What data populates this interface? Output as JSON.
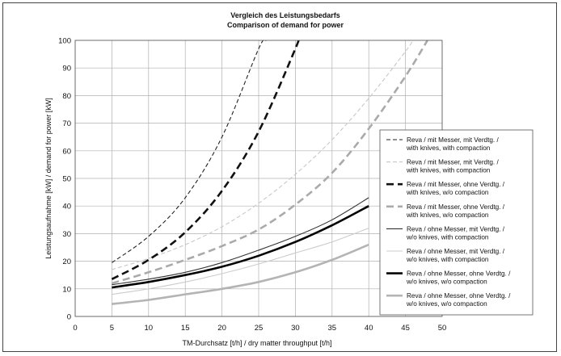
{
  "chart_data": {
    "type": "line",
    "title": "Vergleich des Leistungsbedarfs",
    "subtitle": "Comparison of demand for power",
    "xlabel": "TM-Durchsatz  [t/h] / dry matter throughput [t/h]",
    "ylabel": "Leistungsaufnahme [kW] / demand for power [kW]",
    "xlim": [
      0,
      50
    ],
    "ylim": [
      0,
      100
    ],
    "x_ticks": [
      "0",
      "5",
      "10",
      "15",
      "20",
      "25",
      "30",
      "35",
      "40",
      "45",
      "50"
    ],
    "y_ticks": [
      "0",
      "10",
      "20",
      "30",
      "40",
      "50",
      "60",
      "70",
      "80",
      "90",
      "100"
    ],
    "grid": true,
    "legend_position": "right",
    "series": [
      {
        "name": "Reva / mit Messer, mit Verdtg. /",
        "name2": "with knives, with compaction",
        "color": "#222222",
        "width": 1.1,
        "dash": "5,3",
        "x": [
          5,
          10,
          15,
          20,
          25,
          26
        ],
        "y": [
          19.5,
          29,
          43,
          65,
          97,
          100
        ]
      },
      {
        "name": "Reva / mit Messer, mit Verdtg. /",
        "name2": "with knives, with compaction",
        "color": "#c8c8c8",
        "width": 1.1,
        "dash": "5,3",
        "x": [
          5,
          10,
          15,
          20,
          25,
          30,
          35,
          40,
          45,
          46
        ],
        "y": [
          17,
          21,
          26,
          32.5,
          41,
          51.5,
          64,
          79,
          96,
          100
        ]
      },
      {
        "name": "Reva / mit Messer, ohne Verdtg. /",
        "name2": "with knives, w/o compaction",
        "color": "#111111",
        "width": 2.6,
        "dash": "9,5",
        "x": [
          5,
          10,
          15,
          20,
          25,
          30,
          30.3
        ],
        "y": [
          13.5,
          20.5,
          30.5,
          45.5,
          67,
          97,
          100
        ]
      },
      {
        "name": "Reva / mit Messer, ohne Verdtg. /",
        "name2": "with knives, w/o compaction",
        "color": "#aaaaaa",
        "width": 2.6,
        "dash": "9,5",
        "x": [
          5,
          10,
          15,
          20,
          25,
          30,
          35,
          40,
          45,
          48
        ],
        "y": [
          12,
          16,
          20.5,
          25.5,
          31.5,
          40.5,
          52,
          68,
          87,
          100
        ]
      },
      {
        "name": "Reva / ohne Messer, mit Verdtg. /",
        "name2": "w/o knives, with compaction",
        "color": "#333333",
        "width": 1.1,
        "dash": "",
        "x": [
          5,
          10,
          15,
          20,
          25,
          30,
          35,
          40
        ],
        "y": [
          11.5,
          13.5,
          16,
          19.5,
          24,
          29,
          35,
          43
        ]
      },
      {
        "name": "Reva / ohne Messer, mit Verdtg. /",
        "name2": "w/o knives, with compaction",
        "color": "#cccccc",
        "width": 1.1,
        "dash": "",
        "x": [
          5,
          10,
          15,
          20,
          25,
          30,
          35,
          40
        ],
        "y": [
          8,
          10,
          12.5,
          15.5,
          19,
          23,
          27,
          32
        ]
      },
      {
        "name": "Reva / ohne Messer, ohne Verdtg. /",
        "name2": "w/o knives, w/o compaction",
        "color": "#000000",
        "width": 2.6,
        "dash": "",
        "x": [
          5,
          10,
          15,
          20,
          25,
          30,
          35,
          40
        ],
        "y": [
          10.5,
          12.5,
          15,
          18,
          22,
          27,
          33,
          40
        ]
      },
      {
        "name": "Reva / ohne Messer, ohne Verdtg. /",
        "name2": "w/o knives, w/o compaction",
        "color": "#b4b4b4",
        "width": 2.6,
        "dash": "",
        "x": [
          5,
          10,
          15,
          20,
          25,
          30,
          35,
          40
        ],
        "y": [
          4.5,
          6,
          8,
          10,
          12.5,
          16,
          20.5,
          26
        ]
      }
    ]
  }
}
